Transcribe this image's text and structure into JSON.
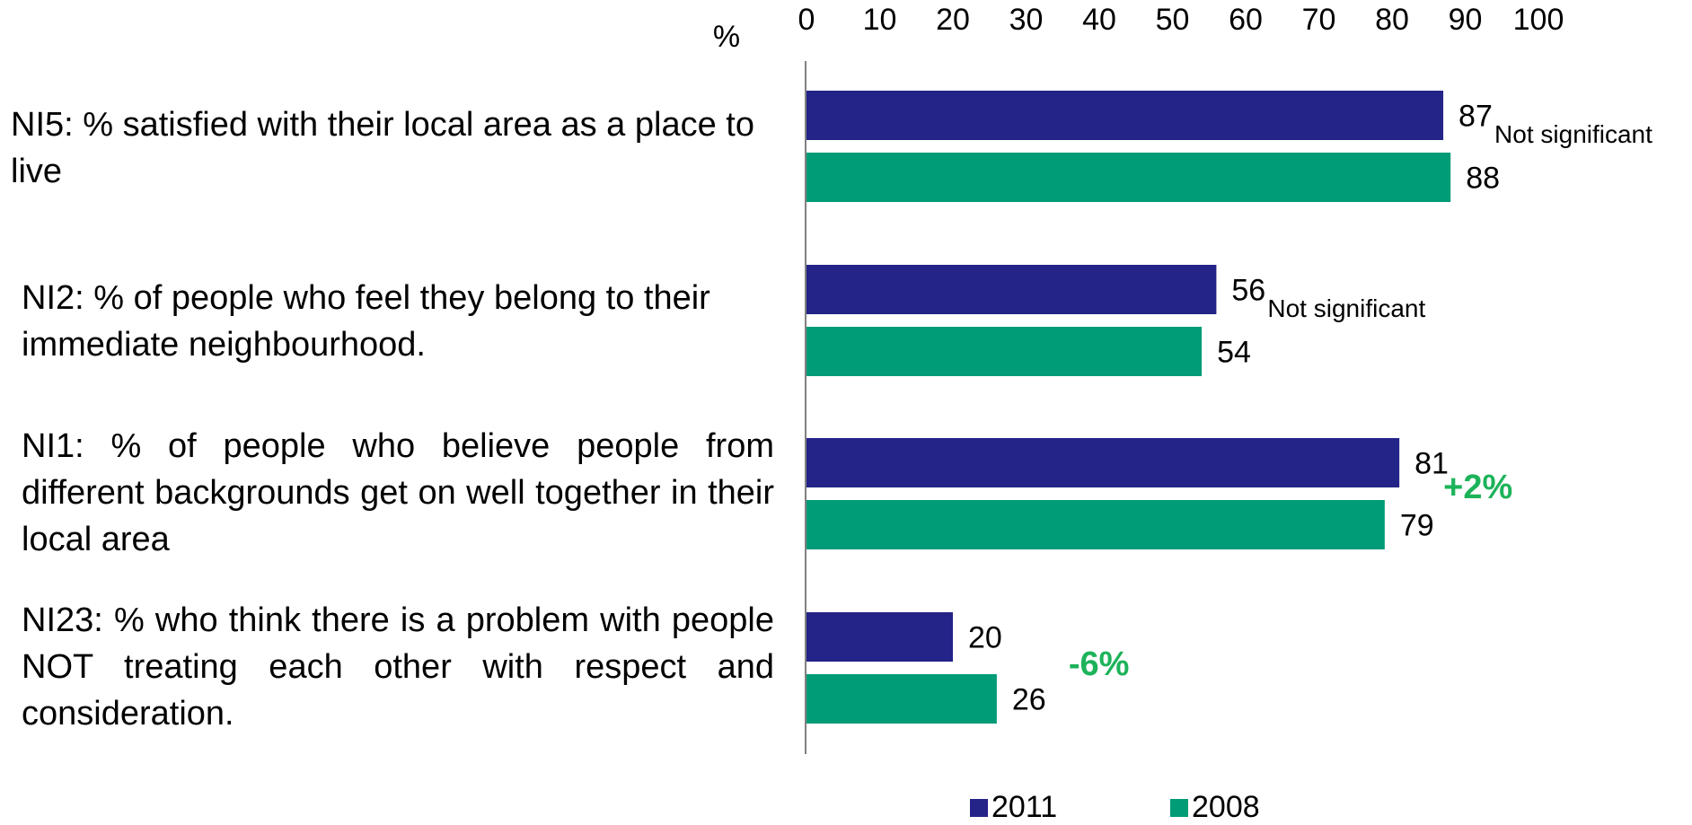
{
  "chart_data": {
    "type": "bar",
    "orientation": "horizontal",
    "axis_unit_label": "%",
    "xlim": [
      0,
      100
    ],
    "x_ticks": [
      0,
      10,
      20,
      30,
      40,
      50,
      60,
      70,
      80,
      90,
      100
    ],
    "x_tick_labels": [
      "0",
      "10",
      "20",
      "30",
      "40",
      "50",
      "60",
      "70",
      "80",
      "90",
      "100"
    ],
    "x_axis_position": "top",
    "grid": false,
    "legend_position": "bottom",
    "categories": [
      "NI5: % satisfied with their local area as a place to live",
      "NI2: % of people who feel they belong to their immediate neighbourhood.",
      "NI1: % of people who believe people from different backgrounds get on well together in their local area",
      "NI23:  % who think there is a problem with people NOT treating each other with respect and consideration."
    ],
    "series": [
      {
        "name": "2011",
        "color": "#232388",
        "values": [
          87,
          56,
          81,
          20
        ],
        "value_labels": [
          "87",
          "56",
          "81",
          "20"
        ]
      },
      {
        "name": "2008",
        "color": "#009B77",
        "values": [
          88,
          54,
          79,
          26
        ],
        "value_labels": [
          "88",
          "54",
          "79",
          "26"
        ]
      }
    ],
    "annotations": [
      {
        "category_index": 0,
        "text": "Not significant",
        "style": "plain"
      },
      {
        "category_index": 1,
        "text": "Not significant",
        "style": "plain"
      },
      {
        "category_index": 2,
        "text": "+2%",
        "style": "highlight",
        "color": "#1DB35A"
      },
      {
        "category_index": 3,
        "text": "-6%",
        "style": "highlight",
        "color": "#1DB35A"
      }
    ]
  }
}
